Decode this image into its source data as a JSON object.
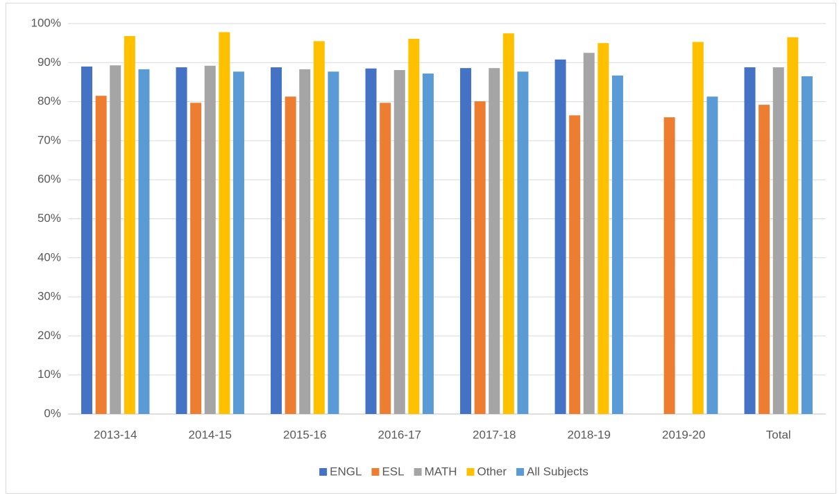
{
  "chart_data": {
    "type": "bar",
    "categories": [
      "2013-14",
      "2014-15",
      "2015-16",
      "2016-17",
      "2017-18",
      "2018-19",
      "2019-20",
      "Total"
    ],
    "series": [
      {
        "name": "ENGL",
        "color": "#4472c4",
        "values": [
          89.0,
          88.8,
          88.8,
          88.5,
          88.6,
          90.8,
          null,
          88.8
        ]
      },
      {
        "name": "ESL",
        "color": "#ed7d31",
        "values": [
          81.5,
          79.7,
          81.3,
          79.7,
          80.1,
          76.5,
          76.0,
          79.2
        ]
      },
      {
        "name": "MATH",
        "color": "#a5a5a5",
        "values": [
          89.3,
          89.2,
          88.3,
          88.1,
          88.6,
          92.5,
          null,
          88.8
        ]
      },
      {
        "name": "Other",
        "color": "#ffc000",
        "values": [
          96.8,
          97.8,
          95.5,
          96.1,
          97.5,
          95.0,
          95.3,
          96.5
        ]
      },
      {
        "name": "All Subjects",
        "color": "#5b9bd5",
        "values": [
          88.3,
          87.7,
          87.7,
          87.2,
          87.7,
          86.7,
          81.3,
          86.5
        ]
      }
    ],
    "ylim": [
      0,
      100
    ],
    "yticks": [
      {
        "value": 0,
        "label": "0%"
      },
      {
        "value": 10,
        "label": "10%"
      },
      {
        "value": 20,
        "label": "20%"
      },
      {
        "value": 30,
        "label": "30%"
      },
      {
        "value": 40,
        "label": "40%"
      },
      {
        "value": 50,
        "label": "50%"
      },
      {
        "value": 60,
        "label": "60%"
      },
      {
        "value": 70,
        "label": "70%"
      },
      {
        "value": 80,
        "label": "80%"
      },
      {
        "value": 90,
        "label": "90%"
      },
      {
        "value": 100,
        "label": "100%"
      }
    ],
    "grid": true,
    "legend": "bottom"
  }
}
